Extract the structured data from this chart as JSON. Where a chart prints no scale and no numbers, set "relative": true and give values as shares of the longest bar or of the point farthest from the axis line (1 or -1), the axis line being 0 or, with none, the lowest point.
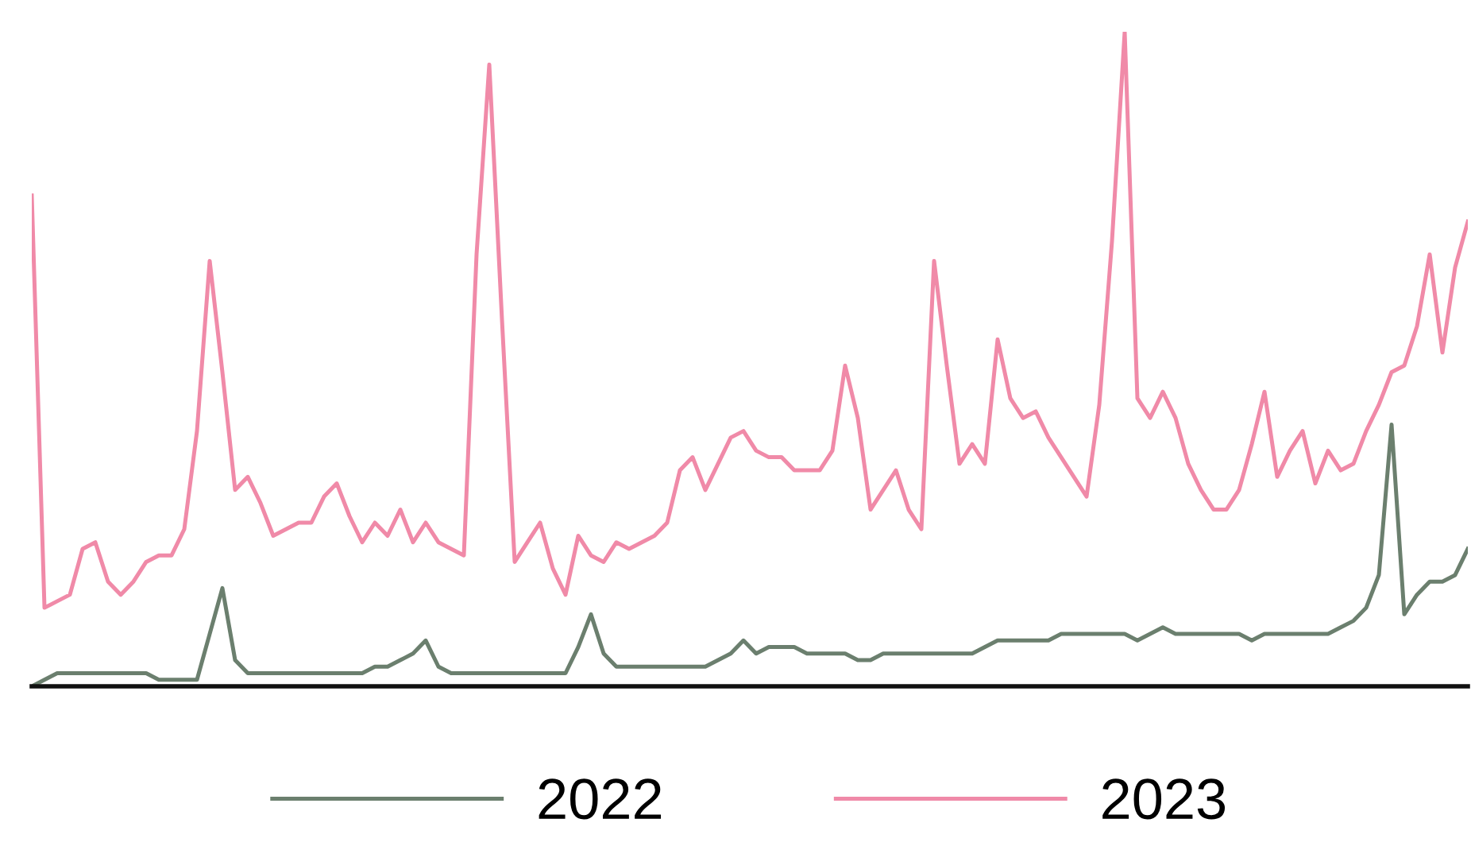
{
  "chart_data": {
    "type": "line",
    "relative": true,
    "legend": "bottom",
    "marker": "none",
    "line_style": "solid",
    "categories": [
      null,
      null,
      null,
      null,
      null,
      null,
      null,
      null,
      null,
      null,
      null,
      null,
      null,
      null,
      null,
      null,
      null,
      null,
      null,
      null,
      null,
      null,
      null,
      null,
      null,
      null,
      null,
      null,
      null,
      null,
      null,
      null,
      null,
      null,
      null,
      null,
      null,
      null,
      null,
      null,
      null,
      null,
      null,
      null,
      null,
      null,
      null,
      null,
      null,
      null,
      null,
      null,
      null,
      null,
      null,
      null,
      null,
      null,
      null,
      null,
      null,
      null,
      null,
      null,
      null,
      null,
      null,
      null,
      null,
      null,
      null,
      null,
      null,
      null,
      null,
      null,
      null,
      null,
      null,
      null,
      null,
      null,
      null,
      null,
      null,
      null,
      null,
      null,
      null,
      null,
      null,
      null,
      null,
      null,
      null,
      null,
      null,
      null,
      null,
      null,
      null,
      null,
      null,
      null,
      null,
      null,
      null,
      null,
      null,
      null,
      null,
      null,
      null,
      null
    ],
    "series": [
      {
        "name": "2022",
        "color": "#6b7f6e",
        "values": [
          0.0,
          0.01,
          0.02,
          0.02,
          0.02,
          0.02,
          0.02,
          0.02,
          0.02,
          0.02,
          0.01,
          0.01,
          0.01,
          0.01,
          0.08,
          0.15,
          0.04,
          0.02,
          0.02,
          0.02,
          0.02,
          0.02,
          0.02,
          0.02,
          0.02,
          0.02,
          0.02,
          0.03,
          0.03,
          0.04,
          0.05,
          0.07,
          0.03,
          0.02,
          0.02,
          0.02,
          0.02,
          0.02,
          0.02,
          0.02,
          0.02,
          0.02,
          0.02,
          0.06,
          0.11,
          0.05,
          0.03,
          0.03,
          0.03,
          0.03,
          0.03,
          0.03,
          0.03,
          0.03,
          0.04,
          0.05,
          0.07,
          0.05,
          0.06,
          0.06,
          0.06,
          0.05,
          0.05,
          0.05,
          0.05,
          0.04,
          0.04,
          0.05,
          0.05,
          0.05,
          0.05,
          0.05,
          0.05,
          0.05,
          0.05,
          0.06,
          0.07,
          0.07,
          0.07,
          0.07,
          0.07,
          0.08,
          0.08,
          0.08,
          0.08,
          0.08,
          0.08,
          0.07,
          0.08,
          0.09,
          0.08,
          0.08,
          0.08,
          0.08,
          0.08,
          0.08,
          0.07,
          0.08,
          0.08,
          0.08,
          0.08,
          0.08,
          0.08,
          0.09,
          0.1,
          0.12,
          0.17,
          0.4,
          0.11,
          0.14,
          0.16,
          0.16,
          0.17,
          0.21
        ]
      },
      {
        "name": "2023",
        "color": "#f08aa8",
        "values": [
          0.75,
          0.12,
          0.13,
          0.14,
          0.21,
          0.22,
          0.16,
          0.14,
          0.16,
          0.19,
          0.2,
          0.2,
          0.24,
          0.39,
          0.65,
          0.48,
          0.3,
          0.32,
          0.28,
          0.23,
          0.24,
          0.25,
          0.25,
          0.29,
          0.31,
          0.26,
          0.22,
          0.25,
          0.23,
          0.27,
          0.22,
          0.25,
          0.22,
          0.21,
          0.2,
          0.66,
          0.95,
          0.56,
          0.19,
          0.22,
          0.25,
          0.18,
          0.14,
          0.23,
          0.2,
          0.19,
          0.22,
          0.21,
          0.22,
          0.23,
          0.25,
          0.33,
          0.35,
          0.3,
          0.34,
          0.38,
          0.39,
          0.36,
          0.35,
          0.35,
          0.33,
          0.33,
          0.33,
          0.36,
          0.49,
          0.41,
          0.27,
          0.3,
          0.33,
          0.27,
          0.24,
          0.65,
          0.49,
          0.34,
          0.37,
          0.34,
          0.53,
          0.44,
          0.41,
          0.42,
          0.38,
          0.35,
          0.32,
          0.29,
          0.43,
          0.68,
          1.0,
          0.44,
          0.41,
          0.45,
          0.41,
          0.34,
          0.3,
          0.27,
          0.27,
          0.3,
          0.37,
          0.45,
          0.32,
          0.36,
          0.39,
          0.31,
          0.36,
          0.33,
          0.34,
          0.39,
          0.43,
          0.48,
          0.49,
          0.55,
          0.66,
          0.51,
          0.64,
          0.71
        ]
      }
    ]
  }
}
